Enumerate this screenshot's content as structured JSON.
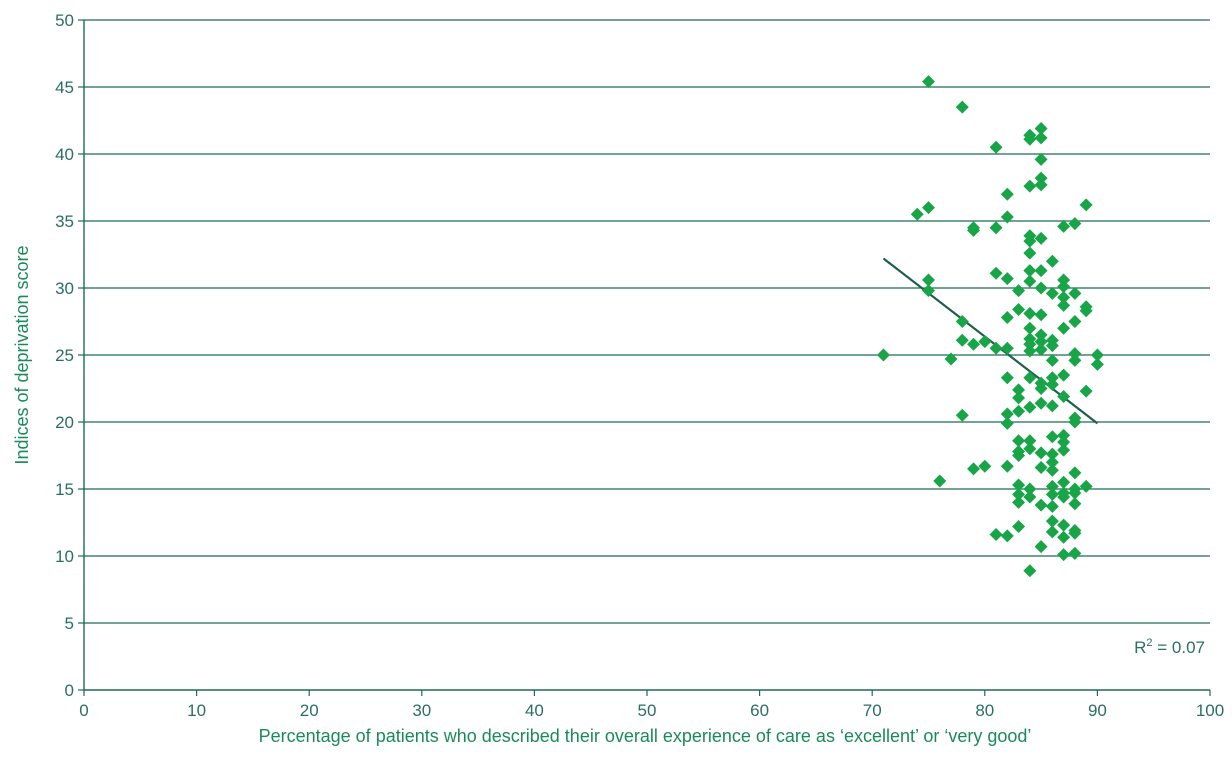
{
  "chart_data": {
    "type": "scatter",
    "xlabel": "Percentage of patients who described their overall experience of care as ‘excellent’ or ‘very good’",
    "ylabel": "Indices of deprivation score",
    "xlim": [
      0,
      100
    ],
    "ylim": [
      0,
      50
    ],
    "x_ticks": [
      "0",
      "10",
      "20",
      "30",
      "40",
      "50",
      "60",
      "70",
      "80",
      "90",
      "100"
    ],
    "y_ticks": [
      "0",
      "5",
      "10",
      "15",
      "20",
      "25",
      "30",
      "35",
      "40",
      "45",
      "50"
    ],
    "grid": "horizontal",
    "annotation": {
      "prefix": "R",
      "sup": "2",
      "suffix": " = 0.07"
    },
    "trendline": {
      "x": [
        71,
        90
      ],
      "y": [
        32.2,
        19.9
      ]
    },
    "colors": {
      "points": "#18a548",
      "grid": "#1f6b4f",
      "axis": "#1f6b4f",
      "trend": "#1f5e4b",
      "text": "#2b6f63",
      "title": "#1a8a5c"
    },
    "points": [
      [
        71,
        25.0
      ],
      [
        74,
        35.5
      ],
      [
        75,
        45.4
      ],
      [
        75,
        36.0
      ],
      [
        75,
        30.6
      ],
      [
        75,
        29.8
      ],
      [
        76,
        15.6
      ],
      [
        77,
        24.7
      ],
      [
        78,
        43.5
      ],
      [
        78,
        27.5
      ],
      [
        78,
        26.1
      ],
      [
        78,
        20.5
      ],
      [
        79,
        34.5
      ],
      [
        79,
        34.3
      ],
      [
        79,
        25.8
      ],
      [
        79,
        16.5
      ],
      [
        80,
        26.0
      ],
      [
        80,
        16.7
      ],
      [
        81,
        40.5
      ],
      [
        81,
        34.5
      ],
      [
        81,
        31.1
      ],
      [
        81,
        25.5
      ],
      [
        81,
        11.6
      ],
      [
        82,
        37.0
      ],
      [
        82,
        35.3
      ],
      [
        82,
        30.7
      ],
      [
        82,
        27.8
      ],
      [
        82,
        25.5
      ],
      [
        82,
        23.3
      ],
      [
        82,
        20.6
      ],
      [
        82,
        19.9
      ],
      [
        82,
        16.7
      ],
      [
        82,
        11.5
      ],
      [
        83,
        29.8
      ],
      [
        83,
        28.4
      ],
      [
        83,
        22.4
      ],
      [
        83,
        21.8
      ],
      [
        83,
        20.8
      ],
      [
        83,
        18.6
      ],
      [
        83,
        17.8
      ],
      [
        83,
        17.5
      ],
      [
        83,
        15.3
      ],
      [
        83,
        14.6
      ],
      [
        83,
        14.0
      ],
      [
        83,
        12.2
      ],
      [
        84,
        41.4
      ],
      [
        84,
        41.1
      ],
      [
        84,
        37.6
      ],
      [
        84,
        33.9
      ],
      [
        84,
        33.5
      ],
      [
        84,
        32.6
      ],
      [
        84,
        31.3
      ],
      [
        84,
        30.5
      ],
      [
        84,
        28.1
      ],
      [
        84,
        27.0
      ],
      [
        84,
        26.2
      ],
      [
        84,
        25.8
      ],
      [
        84,
        25.3
      ],
      [
        84,
        23.3
      ],
      [
        84,
        21.1
      ],
      [
        84,
        18.6
      ],
      [
        84,
        18.0
      ],
      [
        84,
        15.0
      ],
      [
        84,
        14.4
      ],
      [
        84,
        8.9
      ],
      [
        85,
        41.9
      ],
      [
        85,
        41.2
      ],
      [
        85,
        39.6
      ],
      [
        85,
        38.2
      ],
      [
        85,
        37.7
      ],
      [
        85,
        33.7
      ],
      [
        85,
        31.3
      ],
      [
        85,
        30.0
      ],
      [
        85,
        28.0
      ],
      [
        85,
        26.5
      ],
      [
        85,
        26.0
      ],
      [
        85,
        25.4
      ],
      [
        85,
        22.9
      ],
      [
        85,
        22.5
      ],
      [
        85,
        21.4
      ],
      [
        85,
        17.7
      ],
      [
        85,
        16.6
      ],
      [
        85,
        13.8
      ],
      [
        85,
        10.7
      ],
      [
        86,
        32.0
      ],
      [
        86,
        29.6
      ],
      [
        86,
        26.1
      ],
      [
        86,
        25.7
      ],
      [
        86,
        24.6
      ],
      [
        86,
        23.3
      ],
      [
        86,
        22.8
      ],
      [
        86,
        21.2
      ],
      [
        86,
        18.9
      ],
      [
        86,
        17.6
      ],
      [
        86,
        17.0
      ],
      [
        86,
        16.4
      ],
      [
        86,
        15.2
      ],
      [
        86,
        14.6
      ],
      [
        86,
        13.7
      ],
      [
        86,
        12.6
      ],
      [
        86,
        11.8
      ],
      [
        87,
        34.6
      ],
      [
        87,
        30.6
      ],
      [
        87,
        30.1
      ],
      [
        87,
        29.3
      ],
      [
        87,
        28.7
      ],
      [
        87,
        27.0
      ],
      [
        87,
        23.5
      ],
      [
        87,
        21.9
      ],
      [
        87,
        19.0
      ],
      [
        87,
        18.5
      ],
      [
        87,
        17.9
      ],
      [
        87,
        15.5
      ],
      [
        87,
        14.7
      ],
      [
        87,
        14.4
      ],
      [
        87,
        12.3
      ],
      [
        87,
        11.4
      ],
      [
        87,
        10.1
      ],
      [
        88,
        34.8
      ],
      [
        88,
        29.6
      ],
      [
        88,
        27.5
      ],
      [
        88,
        25.1
      ],
      [
        88,
        24.6
      ],
      [
        88,
        20.3
      ],
      [
        88,
        20.0
      ],
      [
        88,
        16.2
      ],
      [
        88,
        15.0
      ],
      [
        88,
        14.7
      ],
      [
        88,
        13.9
      ],
      [
        88,
        11.9
      ],
      [
        88,
        11.7
      ],
      [
        88,
        10.2
      ],
      [
        89,
        36.2
      ],
      [
        89,
        28.6
      ],
      [
        89,
        28.3
      ],
      [
        89,
        22.3
      ],
      [
        89,
        15.2
      ],
      [
        90,
        25.0
      ],
      [
        90,
        24.3
      ]
    ]
  }
}
